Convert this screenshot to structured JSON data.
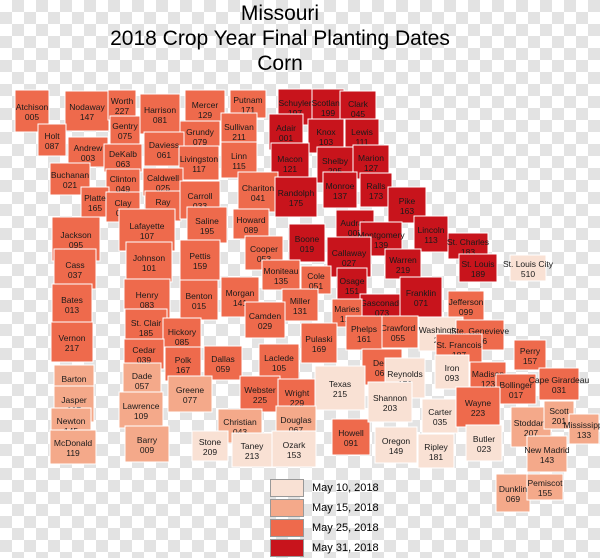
{
  "titles": [
    "Missouri",
    "2018 Crop Year Final Planting Dates",
    "Corn"
  ],
  "legend": [
    {
      "label": "May 10, 2018",
      "color": "#f9e1d4"
    },
    {
      "label": "May 15, 2018",
      "color": "#f4a98a"
    },
    {
      "label": "May 25, 2018",
      "color": "#ee6a4c"
    },
    {
      "label": "May 31, 2018",
      "color": "#c8141c"
    }
  ],
  "counties": [
    {
      "name": "Atchison",
      "code": "005",
      "date": 2
    },
    {
      "name": "Nodaway",
      "code": "147",
      "date": 2
    },
    {
      "name": "Worth",
      "code": "227",
      "date": 2
    },
    {
      "name": "Harrison",
      "code": "081",
      "date": 2
    },
    {
      "name": "Mercer",
      "code": "129",
      "date": 2
    },
    {
      "name": "Putnam",
      "code": "171",
      "date": 2
    },
    {
      "name": "Schuyler",
      "code": "197",
      "date": 3
    },
    {
      "name": "Scotland",
      "code": "199",
      "date": 3
    },
    {
      "name": "Clark",
      "code": "045",
      "date": 3
    },
    {
      "name": "Holt",
      "code": "087",
      "date": 2
    },
    {
      "name": "Andrew",
      "code": "003",
      "date": 2
    },
    {
      "name": "Gentry",
      "code": "075",
      "date": 2
    },
    {
      "name": "Grundy",
      "code": "079",
      "date": 2
    },
    {
      "name": "Sullivan",
      "code": "211",
      "date": 2
    },
    {
      "name": "Adair",
      "code": "001",
      "date": 3
    },
    {
      "name": "Knox",
      "code": "103",
      "date": 3
    },
    {
      "name": "Lewis",
      "code": "111",
      "date": 3
    },
    {
      "name": "DeKalb",
      "code": "063",
      "date": 2
    },
    {
      "name": "Daviess",
      "code": "061",
      "date": 2
    },
    {
      "name": "Livingston",
      "code": "117",
      "date": 2
    },
    {
      "name": "Linn",
      "code": "115",
      "date": 2
    },
    {
      "name": "Macon",
      "code": "121",
      "date": 3
    },
    {
      "name": "Shelby",
      "code": "205",
      "date": 3
    },
    {
      "name": "Marion",
      "code": "127",
      "date": 3
    },
    {
      "name": "Buchanan",
      "code": "021",
      "date": 2
    },
    {
      "name": "Clinton",
      "code": "049",
      "date": 2
    },
    {
      "name": "Caldwell",
      "code": "025",
      "date": 2
    },
    {
      "name": "Platte",
      "code": "165",
      "date": 2
    },
    {
      "name": "Clay",
      "code": "047",
      "date": 2
    },
    {
      "name": "Ray",
      "code": "177",
      "date": 2
    },
    {
      "name": "Carroll",
      "code": "033",
      "date": 2
    },
    {
      "name": "Chariton",
      "code": "041",
      "date": 2
    },
    {
      "name": "Randolph",
      "code": "175",
      "date": 3
    },
    {
      "name": "Monroe",
      "code": "137",
      "date": 3
    },
    {
      "name": "Ralls",
      "code": "173",
      "date": 3
    },
    {
      "name": "Pike",
      "code": "163",
      "date": 3
    },
    {
      "name": "Jackson",
      "code": "095",
      "date": 2
    },
    {
      "name": "Lafayette",
      "code": "107",
      "date": 2
    },
    {
      "name": "Saline",
      "code": "195",
      "date": 2
    },
    {
      "name": "Howard",
      "code": "089",
      "date": 2
    },
    {
      "name": "Boone",
      "code": "019",
      "date": 3
    },
    {
      "name": "Audrain",
      "code": "007",
      "date": 3
    },
    {
      "name": "Montgomery",
      "code": "139",
      "date": 3
    },
    {
      "name": "Lincoln",
      "code": "113",
      "date": 3
    },
    {
      "name": "Callaway",
      "code": "027",
      "date": 3
    },
    {
      "name": "Warren",
      "code": "219",
      "date": 3
    },
    {
      "name": "St. Charles",
      "code": "183",
      "date": 3
    },
    {
      "name": "St. Louis",
      "code": "189",
      "date": 3
    },
    {
      "name": "St. Louis City",
      "code": "510",
      "date": 0
    },
    {
      "name": "Cass",
      "code": "037",
      "date": 2
    },
    {
      "name": "Johnson",
      "code": "101",
      "date": 2
    },
    {
      "name": "Pettis",
      "code": "159",
      "date": 2
    },
    {
      "name": "Cooper",
      "code": "053",
      "date": 2
    },
    {
      "name": "Moniteau",
      "code": "135",
      "date": 2
    },
    {
      "name": "Cole",
      "code": "051",
      "date": 2
    },
    {
      "name": "Osage",
      "code": "151",
      "date": 3
    },
    {
      "name": "Gasconade",
      "code": "073",
      "date": 3
    },
    {
      "name": "Franklin",
      "code": "071",
      "date": 3
    },
    {
      "name": "Jefferson",
      "code": "099",
      "date": 2
    },
    {
      "name": "Bates",
      "code": "013",
      "date": 2
    },
    {
      "name": "Henry",
      "code": "083",
      "date": 2
    },
    {
      "name": "Benton",
      "code": "015",
      "date": 2
    },
    {
      "name": "Morgan",
      "code": "141",
      "date": 2
    },
    {
      "name": "Miller",
      "code": "131",
      "date": 2
    },
    {
      "name": "Maries",
      "code": "125",
      "date": 2
    },
    {
      "name": "Crawford",
      "code": "055",
      "date": 2
    },
    {
      "name": "Washington",
      "code": "221",
      "date": 0
    },
    {
      "name": "Ste. Genevieve",
      "code": "186",
      "date": 2
    },
    {
      "name": "St. Clair",
      "code": "185",
      "date": 2
    },
    {
      "name": "Hickory",
      "code": "085",
      "date": 2
    },
    {
      "name": "Camden",
      "code": "029",
      "date": 2
    },
    {
      "name": "Pulaski",
      "code": "169",
      "date": 2
    },
    {
      "name": "Phelps",
      "code": "161",
      "date": 2
    },
    {
      "name": "St. Francois",
      "code": "187",
      "date": 2
    },
    {
      "name": "Perry",
      "code": "157",
      "date": 2
    },
    {
      "name": "Vernon",
      "code": "217",
      "date": 2
    },
    {
      "name": "Cedar",
      "code": "039",
      "date": 2
    },
    {
      "name": "Polk",
      "code": "167",
      "date": 2
    },
    {
      "name": "Dallas",
      "code": "059",
      "date": 2
    },
    {
      "name": "Laclede",
      "code": "105",
      "date": 2
    },
    {
      "name": "Dent",
      "code": "065",
      "date": 2
    },
    {
      "name": "Iron",
      "code": "093",
      "date": 0
    },
    {
      "name": "Madison",
      "code": "123",
      "date": 2
    },
    {
      "name": "Barton",
      "code": "011",
      "date": 1
    },
    {
      "name": "Dade",
      "code": "057",
      "date": 1
    },
    {
      "name": "Greene",
      "code": "077",
      "date": 1
    },
    {
      "name": "Webster",
      "code": "225",
      "date": 2
    },
    {
      "name": "Wright",
      "code": "229",
      "date": 2
    },
    {
      "name": "Texas",
      "code": "215",
      "date": 0
    },
    {
      "name": "Reynolds",
      "code": "179",
      "date": 0
    },
    {
      "name": "Bollinger",
      "code": "017",
      "date": 2
    },
    {
      "name": "Cape Girardeau",
      "code": "031",
      "date": 2
    },
    {
      "name": "Jasper",
      "code": "097",
      "date": 1
    },
    {
      "name": "Lawrence",
      "code": "109",
      "date": 1
    },
    {
      "name": "Christian",
      "code": "043",
      "date": 1
    },
    {
      "name": "Douglas",
      "code": "067",
      "date": 1
    },
    {
      "name": "Howell",
      "code": "091",
      "date": 2
    },
    {
      "name": "Shannon",
      "code": "203",
      "date": 0
    },
    {
      "name": "Carter",
      "code": "035",
      "date": 0
    },
    {
      "name": "Wayne",
      "code": "223",
      "date": 2
    },
    {
      "name": "Stoddard",
      "code": "207",
      "date": 1
    },
    {
      "name": "Scott",
      "code": "201",
      "date": 1
    },
    {
      "name": "Mississippi",
      "code": "133",
      "date": 1
    },
    {
      "name": "Newton",
      "code": "145",
      "date": 1
    },
    {
      "name": "Barry",
      "code": "009",
      "date": 1
    },
    {
      "name": "Stone",
      "code": "209",
      "date": 0
    },
    {
      "name": "Taney",
      "code": "213",
      "date": 0
    },
    {
      "name": "Ozark",
      "code": "153",
      "date": 0
    },
    {
      "name": "Oregon",
      "code": "149",
      "date": 0
    },
    {
      "name": "Ripley",
      "code": "181",
      "date": 0
    },
    {
      "name": "Butler",
      "code": "023",
      "date": 0
    },
    {
      "name": "New Madrid",
      "code": "143",
      "date": 1
    },
    {
      "name": "McDonald",
      "code": "119",
      "date": 1
    },
    {
      "name": "Dunklin",
      "code": "069",
      "date": 1
    },
    {
      "name": "Pemiscot",
      "code": "155",
      "date": 1
    }
  ]
}
